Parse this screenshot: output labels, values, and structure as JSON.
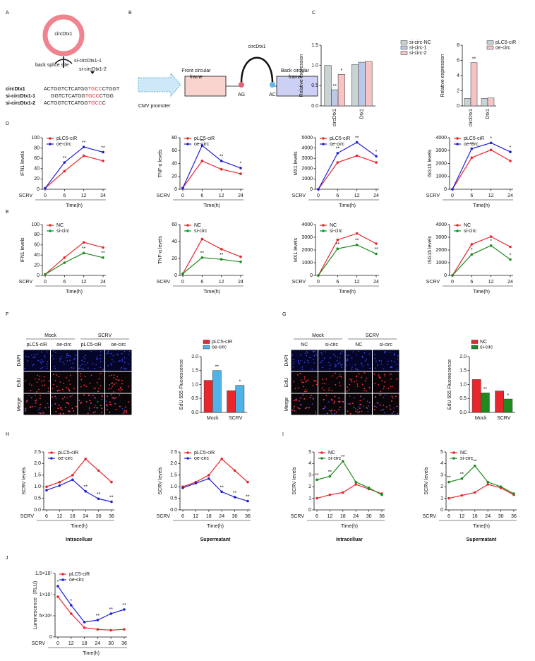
{
  "panel_labels": [
    "A",
    "B",
    "C",
    "D",
    "E",
    "F",
    "G",
    "H",
    "I",
    "J"
  ],
  "diagram_a": {
    "circle_label": "circDtx1",
    "site_label": "back splice site",
    "sirna_labels": [
      "si-circDtx1-1",
      "si-circDtx1-2"
    ],
    "sequences": [
      {
        "name": "circDtx1",
        "pre": "ACTGGTCTCATGG",
        "red": "TGCC",
        "post": "CTGGT"
      },
      {
        "name": "si-circDtx1-1",
        "pre": "GGTCTCATGG",
        "red": "TGCC",
        "post": "CTGG"
      },
      {
        "name": "si-circDtx1-2",
        "pre": "ACTGGTCTCATGG",
        "red": "TGCC",
        "post": "C"
      }
    ]
  },
  "diagram_b": {
    "promoter": "CMV promoter",
    "front": [
      "Front circular",
      "frame"
    ],
    "back": [
      "Back circular",
      "frame"
    ],
    "circ": "circDtx1",
    "left_site": "AG",
    "right_site": "AC"
  },
  "microscopy": [
    {
      "groups": [
        "Mock",
        "SCRV"
      ],
      "columns": [
        "pLC5-ciR",
        "oe-circ",
        "pLC5-ciR",
        "oe-circ"
      ],
      "rows": [
        "DAPI",
        "EdU",
        "Merge"
      ]
    },
    {
      "groups": [
        "Mock",
        "SCRV"
      ],
      "columns": [
        "NC",
        "si-circ",
        "NC",
        "si-circ"
      ],
      "rows": [
        "DAPI",
        "EdU",
        "Merge"
      ]
    }
  ],
  "chart_data": [
    {
      "type": "bar",
      "ylabel": "Relative expression",
      "categories": [
        "circDtx1",
        "Dtx1"
      ],
      "ylim": [
        0,
        1.5
      ],
      "yticks": [
        {
          "value": 0,
          "label": "0.0"
        },
        0.5,
        {
          "value": 1,
          "label": "1.0"
        },
        1.5
      ],
      "series": [
        {
          "name": "si-circ-NC",
          "color": "#c9d3d3",
          "values": [
            1.0,
            1.02
          ],
          "sig": [
            null,
            null
          ]
        },
        {
          "name": "si-circ-1",
          "color": "#bcc8e6",
          "values": [
            0.4,
            1.08
          ],
          "sig": [
            "**",
            null
          ]
        },
        {
          "name": "si-circ-2",
          "color": "#f6c4c4",
          "values": [
            0.78,
            1.1
          ],
          "sig": [
            "*",
            null
          ]
        }
      ]
    },
    {
      "type": "bar",
      "ylabel": "Relative expression",
      "categories": [
        "circDtx1",
        "Dtx1"
      ],
      "ylim": [
        0,
        8
      ],
      "yticks": [
        0,
        2,
        4,
        6,
        8
      ],
      "series": [
        {
          "name": "pLC5-ciR",
          "color": "#c9d3d3",
          "values": [
            1.0,
            1.0
          ],
          "sig": [
            null,
            null
          ]
        },
        {
          "name": "oe-circ",
          "color": "#f6c4c4",
          "values": [
            5.7,
            1.05
          ],
          "sig": [
            "**",
            null
          ]
        }
      ]
    },
    {
      "type": "line",
      "ylabel": "IFN1 levels",
      "xlabel": "Time(h)",
      "treatment": "SCRV",
      "categories": [
        "0",
        "6",
        "12",
        "24"
      ],
      "ylim": [
        0,
        100
      ],
      "yticks": [
        0,
        20,
        40,
        60,
        80,
        100
      ],
      "series": [
        {
          "name": "pLC5-ciR",
          "color": "#e8262b",
          "values": [
            2,
            35,
            65,
            55
          ],
          "sig": [
            null,
            null,
            null,
            null
          ]
        },
        {
          "name": "oe-circ",
          "color": "#1f1fd6",
          "values": [
            2,
            52,
            82,
            72
          ],
          "sig": [
            null,
            "**",
            "**",
            "**"
          ]
        }
      ]
    },
    {
      "type": "line",
      "ylabel": "TNF-α levels",
      "xlabel": "Time(h)",
      "treatment": "SCRV",
      "categories": [
        "0",
        "6",
        "12",
        "24"
      ],
      "ylim": [
        0,
        80
      ],
      "yticks": [
        0,
        20,
        40,
        60,
        80
      ],
      "series": [
        {
          "name": "pLC5-ciR",
          "color": "#e8262b",
          "values": [
            2,
            44,
            31,
            24
          ],
          "sig": [
            null,
            null,
            null,
            null
          ]
        },
        {
          "name": "oe-circ",
          "color": "#1f1fd6",
          "values": [
            2,
            68,
            44,
            33
          ],
          "sig": [
            null,
            "**",
            "**",
            "*"
          ]
        }
      ]
    },
    {
      "type": "line",
      "ylabel": "MX1 levels",
      "xlabel": "Time(h)",
      "treatment": "SCRV",
      "categories": [
        "0",
        "6",
        "12",
        "24"
      ],
      "ylim": [
        0,
        5000
      ],
      "yticks": [
        0,
        1000,
        2000,
        3000,
        4000,
        5000
      ],
      "series": [
        {
          "name": "pLC5-ciR",
          "color": "#e8262b",
          "values": [
            0,
            2600,
            3250,
            2600
          ],
          "sig": [
            null,
            null,
            null,
            null
          ]
        },
        {
          "name": "oe-circ",
          "color": "#1f1fd6",
          "values": [
            0,
            3500,
            4550,
            3200
          ],
          "sig": [
            null,
            "**",
            "**",
            "*"
          ]
        }
      ]
    },
    {
      "type": "line",
      "ylabel": "ISG15 levels",
      "xlabel": "Time(h)",
      "treatment": "SCRV",
      "categories": [
        "0",
        "6",
        "12",
        "24"
      ],
      "ylim": [
        0,
        4000
      ],
      "yticks": [
        0,
        1000,
        2000,
        3000,
        4000
      ],
      "series": [
        {
          "name": "pLC5-ciR",
          "color": "#e8262b",
          "values": [
            0,
            2450,
            3050,
            2200
          ],
          "sig": [
            null,
            null,
            null,
            null
          ]
        },
        {
          "name": "oe-circ",
          "color": "#1f1fd6",
          "values": [
            0,
            3150,
            3600,
            2900
          ],
          "sig": [
            null,
            "**",
            "*",
            "*"
          ]
        }
      ]
    },
    {
      "type": "line",
      "ylabel": "IFN1 levels",
      "xlabel": "Time(h)",
      "treatment": "SCRV",
      "categories": [
        "0",
        "6",
        "12",
        "24"
      ],
      "ylim": [
        0,
        100
      ],
      "yticks": [
        0,
        20,
        40,
        60,
        80,
        100
      ],
      "series": [
        {
          "name": "NC",
          "color": "#e8262b",
          "values": [
            2,
            35,
            65,
            55
          ],
          "sig": [
            null,
            null,
            null,
            null
          ]
        },
        {
          "name": "si-circ",
          "color": "#1f8a1f",
          "values": [
            2,
            25,
            44,
            35
          ],
          "sig": [
            null,
            null,
            "**",
            "**"
          ]
        }
      ]
    },
    {
      "type": "line",
      "ylabel": "TNF-α levels",
      "xlabel": "Time(h)",
      "treatment": "SCRV",
      "categories": [
        "0",
        "6",
        "12",
        "24"
      ],
      "ylim": [
        0,
        60
      ],
      "yticks": [
        0,
        20,
        40,
        60
      ],
      "series": [
        {
          "name": "NC",
          "color": "#e8262b",
          "values": [
            2,
            43,
            31,
            22
          ],
          "sig": [
            null,
            null,
            null,
            null
          ]
        },
        {
          "name": "si-circ",
          "color": "#1f8a1f",
          "values": [
            2,
            21,
            19,
            16
          ],
          "sig": [
            null,
            "**",
            "**",
            null
          ]
        }
      ]
    },
    {
      "type": "line",
      "ylabel": "MX1 levels",
      "xlabel": "Time(h)",
      "treatment": "SCRV",
      "categories": [
        "0",
        "6",
        "12",
        "24"
      ],
      "ylim": [
        0,
        4000
      ],
      "yticks": [
        0,
        1000,
        2000,
        3000,
        4000
      ],
      "series": [
        {
          "name": "NC",
          "color": "#e8262b",
          "values": [
            0,
            2800,
            3300,
            2500
          ],
          "sig": [
            null,
            null,
            null,
            null
          ]
        },
        {
          "name": "si-circ",
          "color": "#1f8a1f",
          "values": [
            0,
            2100,
            2400,
            1700
          ],
          "sig": [
            null,
            "**",
            "**",
            "**"
          ]
        }
      ]
    },
    {
      "type": "line",
      "ylabel": "ISG15 levels",
      "xlabel": "Time(h)",
      "treatment": "SCRV",
      "categories": [
        "0",
        "6",
        "12",
        "24"
      ],
      "ylim": [
        0,
        4000
      ],
      "yticks": [
        0,
        1000,
        2000,
        3000,
        4000
      ],
      "series": [
        {
          "name": "NC",
          "color": "#e8262b",
          "values": [
            0,
            2450,
            3050,
            2250
          ],
          "sig": [
            null,
            null,
            null,
            null
          ]
        },
        {
          "name": "si-circ",
          "color": "#1f8a1f",
          "values": [
            0,
            1650,
            2350,
            1250
          ],
          "sig": [
            null,
            "*",
            "*",
            "*"
          ]
        }
      ]
    },
    {
      "type": "bar",
      "ylabel": "EdU 555 Fluorescence",
      "categories": [
        "Mock",
        "SCRV"
      ],
      "ylim": [
        0,
        2
      ],
      "yticks": [
        {
          "value": 0,
          "label": "0.0"
        },
        0.5,
        {
          "value": 1,
          "label": "1.0"
        },
        1.5,
        {
          "value": 2,
          "label": "2.0"
        }
      ],
      "series": [
        {
          "name": "pLC5-ciR",
          "color": "#e8262b",
          "values": [
            1.15,
            0.78
          ],
          "sig": [
            null,
            null
          ]
        },
        {
          "name": "oe-circ",
          "color": "#4fb3e8",
          "values": [
            1.5,
            0.97
          ],
          "sig": [
            "**",
            "*"
          ]
        }
      ]
    },
    {
      "type": "bar",
      "ylabel": "EdU 555 Fluorescence",
      "categories": [
        "Mock",
        "SCRV"
      ],
      "ylim": [
        0,
        2
      ],
      "yticks": [
        {
          "value": 0,
          "label": "0.0"
        },
        0.5,
        {
          "value": 1,
          "label": "1.0"
        },
        1.5,
        {
          "value": 2,
          "label": "2.0"
        }
      ],
      "series": [
        {
          "name": "NC",
          "color": "#e8262b",
          "values": [
            1.18,
            0.77
          ],
          "sig": [
            null,
            null
          ]
        },
        {
          "name": "si-circ",
          "color": "#1f8a1f",
          "values": [
            0.7,
            0.48
          ],
          "sig": [
            "**",
            "*"
          ]
        }
      ]
    },
    {
      "type": "line",
      "ylabel": "SCRV levels",
      "xlabel": "Time(h)",
      "treatment": "SCRV",
      "caption": "Intracelluar",
      "categories": [
        "6",
        "12",
        "18",
        "24",
        "30",
        "36"
      ],
      "ylim": [
        0,
        2.5
      ],
      "yticks": [
        {
          "value": 0,
          "label": "0.0"
        },
        0.5,
        {
          "value": 1,
          "label": "1.0"
        },
        1.5,
        {
          "value": 2,
          "label": "2.0"
        },
        2.5
      ],
      "series": [
        {
          "name": "pLC5-ciR",
          "color": "#e8262b",
          "values": [
            1.0,
            1.2,
            1.5,
            2.2,
            1.7,
            1.2
          ],
          "sig": [
            null,
            null,
            null,
            null,
            null,
            null
          ]
        },
        {
          "name": "oe-circ",
          "color": "#1f1fd6",
          "values": [
            0.85,
            1.05,
            1.3,
            0.8,
            0.48,
            0.35
          ],
          "sig": [
            null,
            null,
            null,
            "**",
            "**",
            "**"
          ]
        }
      ]
    },
    {
      "type": "line",
      "ylabel": "SCRV levels",
      "xlabel": "Time(h)",
      "treatment": "SCRV",
      "caption": "Supermatant",
      "categories": [
        "6",
        "12",
        "18",
        "24",
        "30",
        "36"
      ],
      "ylim": [
        0,
        2.5
      ],
      "yticks": [
        {
          "value": 0,
          "label": "0.0"
        },
        0.5,
        {
          "value": 1,
          "label": "1.0"
        },
        1.5,
        {
          "value": 2,
          "label": "2.0"
        },
        2.5
      ],
      "series": [
        {
          "name": "pLC5-ciR",
          "color": "#e8262b",
          "values": [
            1.0,
            1.2,
            1.5,
            2.2,
            1.7,
            1.2
          ],
          "sig": [
            null,
            null,
            null,
            null,
            null,
            null
          ]
        },
        {
          "name": "oe-circ",
          "color": "#1f1fd6",
          "values": [
            0.95,
            1.15,
            1.35,
            0.78,
            0.55,
            0.38
          ],
          "sig": [
            null,
            null,
            null,
            "**",
            "**",
            "**"
          ]
        }
      ]
    },
    {
      "type": "line",
      "ylabel": "SCRV levels",
      "xlabel": "Time(h)",
      "treatment": "SCRV",
      "caption": "Intracelluar",
      "categories": [
        "6",
        "12",
        "18",
        "24",
        "30",
        "36"
      ],
      "ylim": [
        0,
        5
      ],
      "yticks": [
        0,
        1,
        2,
        3,
        4,
        5
      ],
      "series": [
        {
          "name": "NC",
          "color": "#e8262b",
          "values": [
            1.0,
            1.3,
            1.5,
            2.2,
            1.8,
            1.4
          ],
          "sig": [
            null,
            null,
            null,
            null,
            null,
            null
          ]
        },
        {
          "name": "si-circ",
          "color": "#1f8a1f",
          "values": [
            2.6,
            2.9,
            4.2,
            2.4,
            1.9,
            1.3
          ],
          "sig": [
            "**",
            "**",
            "**",
            null,
            null,
            null
          ]
        }
      ]
    },
    {
      "type": "line",
      "ylabel": "SCRV levels",
      "xlabel": "Time(h)",
      "treatment": "SCRV",
      "caption": "Supermatant",
      "categories": [
        "6",
        "12",
        "18",
        "24",
        "30",
        "36"
      ],
      "ylim": [
        0,
        5
      ],
      "yticks": [
        0,
        1,
        2,
        3,
        4,
        5
      ],
      "series": [
        {
          "name": "NC",
          "color": "#e8262b",
          "values": [
            1.0,
            1.25,
            1.5,
            2.2,
            1.9,
            1.3
          ],
          "sig": [
            null,
            null,
            null,
            null,
            null,
            null
          ]
        },
        {
          "name": "si-circ",
          "color": "#1f8a1f",
          "values": [
            2.4,
            2.7,
            3.8,
            2.4,
            2.0,
            1.4
          ],
          "sig": [
            "**",
            "**",
            "**",
            null,
            null,
            null
          ]
        }
      ]
    },
    {
      "type": "line",
      "ylabel": "Luminescence（RLU)",
      "xlabel": "Time(h)",
      "treatment": "SCRV",
      "categories": [
        "0",
        "12",
        "18",
        "24",
        "30",
        "36"
      ],
      "ylim": [
        0,
        15000000
      ],
      "yticks": [
        0,
        {
          "value": 5000000,
          "label": "5×10⁶"
        },
        {
          "value": 10000000,
          "label": "1×10⁷"
        },
        {
          "value": 15000000,
          "label": "1.5×10⁷"
        }
      ],
      "series": [
        {
          "name": "pLC5-ciR",
          "color": "#e8262b",
          "values": [
            9500000,
            5500000,
            2200000,
            1800000,
            1600000,
            1800000
          ],
          "sig": [
            null,
            null,
            null,
            null,
            null,
            null
          ]
        },
        {
          "name": "oe-circ",
          "color": "#1f1fd6",
          "values": [
            12000000,
            7500000,
            3500000,
            4000000,
            5500000,
            6500000
          ],
          "sig": [
            "*",
            "*",
            null,
            "**",
            "**",
            "**"
          ]
        }
      ]
    }
  ]
}
